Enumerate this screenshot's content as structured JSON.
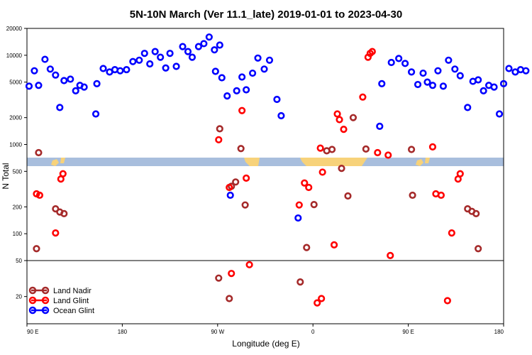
{
  "chart_data": {
    "type": "scatter",
    "title": "5N-10N March (Ver 11.1_late)   2019-01-01 to 2023-04-30",
    "xlabel": "Longitude (deg E)",
    "ylabel": "N Total",
    "x_ticks": [
      {
        "value": 90,
        "label": "90 E"
      },
      {
        "value": 180,
        "label": "180"
      },
      {
        "value": 270,
        "label": "90 W"
      },
      {
        "value": 360,
        "label": "0"
      },
      {
        "value": 450,
        "label": "90 E"
      },
      {
        "value": 540,
        "label": "180"
      }
    ],
    "y_ticks": [
      20,
      50,
      100,
      200,
      500,
      1000,
      2000,
      5000,
      10000,
      20000
    ],
    "xlim": [
      90,
      540
    ],
    "ylim": [
      10,
      20000
    ],
    "y_scale": "log",
    "legend": {
      "placement": "bottom-left"
    },
    "series": [
      {
        "name": "Land Nadir",
        "color": "#a52a2a",
        "points": [
          [
            101,
            810
          ],
          [
            99,
            68
          ],
          [
            117,
            190
          ],
          [
            121,
            175
          ],
          [
            125,
            168
          ],
          [
            272,
            1500
          ],
          [
            271,
            32
          ],
          [
            281,
            19
          ],
          [
            283,
            340
          ],
          [
            287,
            380
          ],
          [
            292,
            900
          ],
          [
            296,
            210
          ],
          [
            348,
            29
          ],
          [
            354,
            70
          ],
          [
            361,
            212
          ],
          [
            373,
            850
          ],
          [
            378,
            880
          ],
          [
            387,
            540
          ],
          [
            393,
            265
          ],
          [
            398,
            2000
          ],
          [
            410,
            890
          ],
          [
            453,
            880
          ],
          [
            454,
            270
          ],
          [
            506,
            190
          ],
          [
            510,
            178
          ],
          [
            514,
            168
          ],
          [
            516,
            68
          ]
        ]
      },
      {
        "name": "Land Glint",
        "color": "#ff0000",
        "points": [
          [
            99,
            280
          ],
          [
            102,
            270
          ],
          [
            117,
            102
          ],
          [
            122,
            410
          ],
          [
            124,
            470
          ],
          [
            271,
            1130
          ],
          [
            281,
            330
          ],
          [
            283,
            36
          ],
          [
            293,
            2400
          ],
          [
            297,
            420
          ],
          [
            300,
            45
          ],
          [
            347,
            210
          ],
          [
            352,
            370
          ],
          [
            356,
            330
          ],
          [
            364,
            17
          ],
          [
            367,
            910
          ],
          [
            368,
            19
          ],
          [
            369,
            490
          ],
          [
            380,
            75
          ],
          [
            383,
            2200
          ],
          [
            385,
            1900
          ],
          [
            389,
            1480
          ],
          [
            407,
            3400
          ],
          [
            412,
            9500
          ],
          [
            414,
            10500
          ],
          [
            416,
            11000
          ],
          [
            421,
            810
          ],
          [
            431,
            760
          ],
          [
            433,
            57
          ],
          [
            473,
            940
          ],
          [
            476,
            280
          ],
          [
            481,
            270
          ],
          [
            487,
            18
          ],
          [
            491,
            102
          ],
          [
            497,
            410
          ],
          [
            499,
            470
          ]
        ]
      },
      {
        "name": "Ocean Glint",
        "color": "#0000ff",
        "points": [
          [
            92,
            4500
          ],
          [
            97,
            6700
          ],
          [
            101,
            4600
          ],
          [
            107,
            9000
          ],
          [
            112,
            7000
          ],
          [
            117,
            6000
          ],
          [
            121,
            2600
          ],
          [
            125,
            5200
          ],
          [
            131,
            5400
          ],
          [
            136,
            4000
          ],
          [
            140,
            4600
          ],
          [
            144,
            4400
          ],
          [
            155,
            2200
          ],
          [
            156,
            4800
          ],
          [
            162,
            7100
          ],
          [
            168,
            6500
          ],
          [
            173,
            6900
          ],
          [
            178,
            6700
          ],
          [
            184,
            6900
          ],
          [
            190,
            8500
          ],
          [
            196,
            8800
          ],
          [
            201,
            10500
          ],
          [
            206,
            8000
          ],
          [
            211,
            11000
          ],
          [
            216,
            9500
          ],
          [
            221,
            7200
          ],
          [
            225,
            10500
          ],
          [
            231,
            7500
          ],
          [
            237,
            12500
          ],
          [
            242,
            11000
          ],
          [
            246,
            9500
          ],
          [
            252,
            12500
          ],
          [
            257,
            13500
          ],
          [
            262,
            16000
          ],
          [
            267,
            11500
          ],
          [
            272,
            13000
          ],
          [
            268,
            6600
          ],
          [
            274,
            5600
          ],
          [
            279,
            3500
          ],
          [
            282,
            270
          ],
          [
            288,
            4000
          ],
          [
            293,
            5700
          ],
          [
            297,
            4100
          ],
          [
            303,
            6300
          ],
          [
            308,
            9300
          ],
          [
            314,
            7000
          ],
          [
            319,
            8800
          ],
          [
            326,
            3200
          ],
          [
            330,
            2100
          ],
          [
            346,
            150
          ],
          [
            423,
            1600
          ],
          [
            425,
            4800
          ],
          [
            434,
            8300
          ],
          [
            441,
            9200
          ],
          [
            447,
            8100
          ],
          [
            453,
            6500
          ],
          [
            459,
            4700
          ],
          [
            464,
            6300
          ],
          [
            468,
            5000
          ],
          [
            473,
            4600
          ],
          [
            478,
            6700
          ],
          [
            483,
            4500
          ],
          [
            488,
            8800
          ],
          [
            494,
            7000
          ],
          [
            499,
            5900
          ],
          [
            506,
            2600
          ],
          [
            511,
            5100
          ],
          [
            516,
            5300
          ],
          [
            521,
            4000
          ],
          [
            526,
            4600
          ],
          [
            531,
            4400
          ],
          [
            536,
            2200
          ],
          [
            540,
            4800
          ],
          [
            545,
            7100
          ],
          [
            551,
            6500
          ],
          [
            556,
            6900
          ],
          [
            561,
            6700
          ]
        ]
      }
    ]
  }
}
